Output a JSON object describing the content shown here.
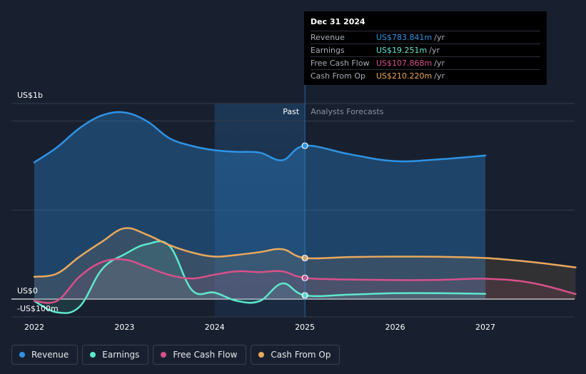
{
  "chart_data": {
    "type": "area",
    "ylabel_top": "US$1b",
    "ylabel_zero": "US$0",
    "ylabel_neg": "-US$100m",
    "ylim": [
      -100,
      1000
    ],
    "xlim": [
      2022,
      2028
    ],
    "x_ticks": [
      {
        "value": 2022,
        "label": "2022"
      },
      {
        "value": 2023,
        "label": "2023"
      },
      {
        "value": 2024,
        "label": "2024"
      },
      {
        "value": 2025,
        "label": "2025"
      },
      {
        "value": 2026,
        "label": "2026"
      },
      {
        "value": 2027,
        "label": "2027"
      }
    ],
    "past_label": "Past",
    "forecast_label": "Analysts Forecasts",
    "divider_x": 2025,
    "highlight_start": 2024,
    "series": [
      {
        "name": "Revenue",
        "color": "#2e93e6",
        "x": [
          2022,
          2022.25,
          2022.5,
          2022.75,
          2023,
          2023.25,
          2023.5,
          2023.75,
          2024,
          2024.25,
          2024.5,
          2024.75,
          2025
        ],
        "values": [
          699,
          775,
          873,
          939,
          954,
          909,
          822,
          783,
          761,
          753,
          749,
          710,
          784
        ],
        "forecast_x": [
          2025,
          2025.5,
          2026,
          2026.5,
          2027
        ],
        "forecast_values": [
          784,
          740,
          705,
          715,
          734
        ]
      },
      {
        "name": "Earnings",
        "color": "#5ee8cc",
        "x": [
          2022,
          2022.25,
          2022.5,
          2022.75,
          2023,
          2023.25,
          2023.5,
          2023.75,
          2024,
          2024.25,
          2024.5,
          2024.75,
          2025
        ],
        "values": [
          -10,
          -68,
          -40,
          152,
          229,
          281,
          271,
          45,
          33,
          -10,
          -10,
          80,
          19
        ],
        "forecast_x": [
          2025,
          2025.5,
          2026,
          2026.5,
          2027
        ],
        "forecast_values": [
          19,
          23,
          30,
          30,
          27
        ]
      },
      {
        "name": "Free Cash Flow",
        "color": "#d9508a",
        "x": [
          2022,
          2022.25,
          2022.5,
          2022.75,
          2023,
          2023.25,
          2023.5,
          2023.75,
          2024,
          2024.25,
          2024.5,
          2024.75,
          2025
        ],
        "values": [
          -10,
          -10,
          114,
          189,
          202,
          164,
          123,
          105,
          125,
          142,
          138,
          142,
          108
        ],
        "forecast_x": [
          2025,
          2025.5,
          2026,
          2026.5,
          2027,
          2027.5,
          2028
        ],
        "forecast_values": [
          108,
          100,
          97,
          98,
          104,
          84,
          26
        ]
      },
      {
        "name": "Cash From Op",
        "color": "#eaa95d",
        "x": [
          2022,
          2022.25,
          2022.5,
          2022.75,
          2023,
          2023.25,
          2023.5,
          2023.75,
          2024,
          2024.25,
          2024.5,
          2024.75,
          2025
        ],
        "values": [
          114,
          130,
          216,
          293,
          362,
          329,
          276,
          238,
          217,
          226,
          240,
          255,
          210
        ],
        "forecast_x": [
          2025,
          2025.5,
          2026,
          2026.5,
          2027,
          2027.5,
          2028
        ],
        "forecast_values": [
          210,
          215,
          217,
          216,
          210,
          190,
          162
        ]
      }
    ]
  },
  "tooltip": {
    "date": "Dec 31 2024",
    "unit": "/yr",
    "rows": [
      {
        "label": "Revenue",
        "value": "US$783.841m",
        "color": "#2e93e6"
      },
      {
        "label": "Earnings",
        "value": "US$19.251m",
        "color": "#5ee8cc"
      },
      {
        "label": "Free Cash Flow",
        "value": "US$107.868m",
        "color": "#d9508a"
      },
      {
        "label": "Cash From Op",
        "value": "US$210.220m",
        "color": "#eaa95d"
      }
    ]
  },
  "legend": [
    {
      "label": "Revenue",
      "color": "#2e93e6"
    },
    {
      "label": "Earnings",
      "color": "#5ee8cc"
    },
    {
      "label": "Free Cash Flow",
      "color": "#d9508a"
    },
    {
      "label": "Cash From Op",
      "color": "#eaa95d"
    }
  ]
}
